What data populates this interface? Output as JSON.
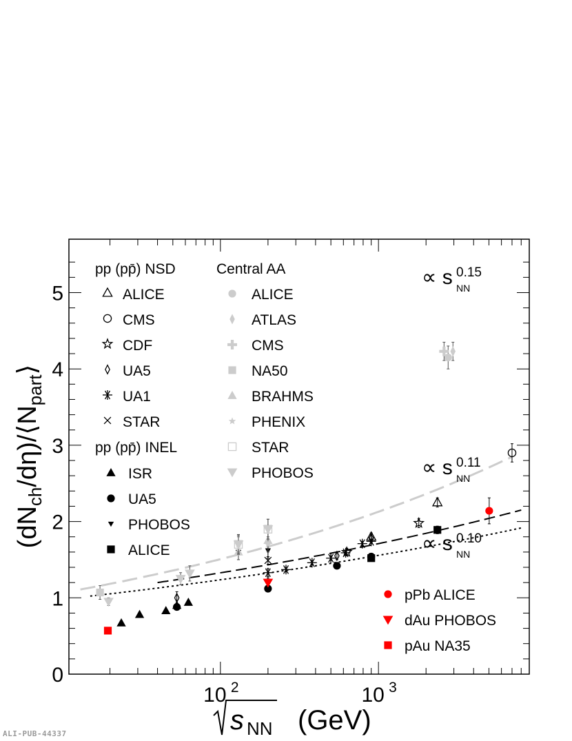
{
  "chart_data": {
    "type": "scatter",
    "xscale": "log",
    "xlim": [
      11,
      9000
    ],
    "ylim": [
      0,
      5.7
    ],
    "x_ticks": [
      {
        "value": 100,
        "base": "10",
        "exp": "2"
      },
      {
        "value": 1000,
        "base": "10",
        "exp": "3"
      }
    ],
    "y_ticks": [
      "0",
      "1",
      "2",
      "3",
      "4",
      "5"
    ],
    "xlabel": {
      "root": "s",
      "sub": "NN",
      "unit": "(GeV)"
    },
    "ylabel": {
      "p1": "(dN",
      "s1": "ch",
      "p2": "/dη)/⟨N",
      "s2": "part",
      "p3": "⟩"
    },
    "legend_sections": {
      "pp_nsd": "pp (pp̄) NSD",
      "pp_inel": "pp (pp̄) INEL",
      "central_aa": "Central AA"
    },
    "legend": {
      "pp_nsd": [
        {
          "label": "ALICE",
          "marker": "triangle-open"
        },
        {
          "label": "CMS",
          "marker": "circle-open"
        },
        {
          "label": "CDF",
          "marker": "star-open"
        },
        {
          "label": "UA5",
          "marker": "diamond-open"
        },
        {
          "label": "UA1",
          "marker": "asterisk"
        },
        {
          "label": "STAR",
          "marker": "cross"
        }
      ],
      "pp_inel": [
        {
          "label": "ISR",
          "marker": "triangle"
        },
        {
          "label": "UA5",
          "marker": "circle"
        },
        {
          "label": "PHOBOS",
          "marker": "triangle-down-small"
        },
        {
          "label": "ALICE",
          "marker": "square"
        }
      ],
      "central_aa": [
        {
          "label": "ALICE",
          "marker": "circle"
        },
        {
          "label": "ATLAS",
          "marker": "diamond"
        },
        {
          "label": "CMS",
          "marker": "plus"
        },
        {
          "label": "NA50",
          "marker": "square"
        },
        {
          "label": "BRAHMS",
          "marker": "triangle"
        },
        {
          "label": "PHENIX",
          "marker": "star"
        },
        {
          "label": "STAR",
          "marker": "square-open"
        },
        {
          "label": "PHOBOS",
          "marker": "triangle-down"
        }
      ],
      "pa": [
        {
          "label": "pPb ALICE",
          "marker": "circle",
          "color": "#ff0000"
        },
        {
          "label": "dAu PHOBOS",
          "marker": "triangle-down",
          "color": "#ff0000"
        },
        {
          "label": "pAu NA35",
          "marker": "square",
          "color": "#ff0000"
        }
      ]
    },
    "fits": [
      {
        "label_base": "∝ s",
        "label_sub": "NN",
        "label_exp": "0.15",
        "coef": 0.755,
        "power": 0.15,
        "xrange": [
          13,
          7000
        ],
        "color": "#cccccc",
        "style": "long-dash"
      },
      {
        "label_base": "∝ s",
        "label_sub": "NN",
        "label_exp": "0.11",
        "coef": 0.8,
        "power": 0.11,
        "xrange": [
          40,
          8000
        ],
        "color": "#000000",
        "style": "dash"
      },
      {
        "label_base": "∝ s",
        "label_sub": "NN",
        "label_exp": "0.10",
        "coef": 0.78,
        "power": 0.1,
        "xrange": [
          15,
          8000
        ],
        "color": "#000000",
        "style": "dot"
      }
    ],
    "series": [
      {
        "group": "pp_nsd",
        "marker": "triangle-open",
        "color": "#000000",
        "points": [
          [
            900,
            1.8,
            0.05
          ],
          [
            2360,
            2.25,
            0.06
          ]
        ]
      },
      {
        "group": "pp_nsd",
        "marker": "circle-open",
        "color": "#000000",
        "points": [
          [
            7000,
            2.9,
            0.12
          ]
        ]
      },
      {
        "group": "pp_nsd",
        "marker": "star-open",
        "color": "#000000",
        "points": [
          [
            630,
            1.6,
            0.05
          ],
          [
            1800,
            1.98,
            0.06
          ]
        ]
      },
      {
        "group": "pp_nsd",
        "marker": "diamond-open",
        "color": "#000000",
        "points": [
          [
            53,
            1.0,
            0.08
          ],
          [
            546,
            1.55,
            0.05
          ],
          [
            900,
            1.78,
            0.05
          ]
        ]
      },
      {
        "group": "pp_nsd",
        "marker": "asterisk",
        "color": "#000000",
        "points": [
          [
            200,
            1.33,
            0.05
          ],
          [
            260,
            1.37,
            0.03
          ],
          [
            380,
            1.46,
            0.03
          ],
          [
            500,
            1.52,
            0.03
          ],
          [
            620,
            1.59,
            0.03
          ],
          [
            790,
            1.71,
            0.03
          ],
          [
            900,
            1.74,
            0.03
          ]
        ]
      },
      {
        "group": "pp_nsd",
        "marker": "cross",
        "color": "#000000",
        "points": [
          [
            200,
            1.49,
            0.05
          ]
        ]
      },
      {
        "group": "pp_inel",
        "marker": "triangle",
        "color": "#000000",
        "points": [
          [
            23.6,
            0.67,
            0.02
          ],
          [
            30.8,
            0.78,
            0.02
          ],
          [
            45.2,
            0.83,
            0.02
          ],
          [
            53,
            0.9,
            0.02
          ],
          [
            62.7,
            0.94,
            0.02
          ]
        ]
      },
      {
        "group": "pp_inel",
        "marker": "circle",
        "color": "#000000",
        "points": [
          [
            53,
            0.88,
            0.03
          ],
          [
            200,
            1.12,
            0.03
          ],
          [
            546,
            1.42,
            0.03
          ],
          [
            900,
            1.54,
            0.03
          ]
        ]
      },
      {
        "group": "pp_inel",
        "marker": "triangle-down-small",
        "color": "#000000",
        "points": [
          [
            130,
            1.6,
            0.1
          ],
          [
            200,
            1.62,
            0.1
          ]
        ]
      },
      {
        "group": "pp_inel",
        "marker": "square",
        "color": "#000000",
        "points": [
          [
            900,
            1.52,
            0.04
          ],
          [
            2360,
            1.89,
            0.05
          ]
        ]
      },
      {
        "group": "central_aa",
        "marker": "circle",
        "color": "#cccccc",
        "points": [
          [
            2760,
            4.15,
            0.15
          ]
        ]
      },
      {
        "group": "central_aa",
        "marker": "diamond",
        "color": "#cccccc",
        "points": [
          [
            2960,
            4.23,
            0.12
          ]
        ]
      },
      {
        "group": "central_aa",
        "marker": "plus",
        "color": "#cccccc",
        "points": [
          [
            2600,
            4.23,
            0.12
          ]
        ]
      },
      {
        "group": "central_aa",
        "marker": "square",
        "color": "#cccccc",
        "points": [
          [
            17.3,
            1.07,
            0.09
          ]
        ]
      },
      {
        "group": "central_aa",
        "marker": "triangle",
        "color": "#cccccc",
        "points": [
          [
            130,
            1.6,
            0.1
          ],
          [
            200,
            1.75,
            0.1
          ]
        ]
      },
      {
        "group": "central_aa",
        "marker": "star",
        "color": "#cccccc",
        "points": [
          [
            130,
            1.7,
            0.1
          ],
          [
            200,
            1.7,
            0.1
          ]
        ]
      },
      {
        "group": "central_aa",
        "marker": "square-open",
        "color": "#cccccc",
        "points": [
          [
            130,
            1.7,
            0.13
          ],
          [
            200,
            1.9,
            0.13
          ]
        ]
      },
      {
        "group": "central_aa",
        "marker": "triangle-down",
        "color": "#cccccc",
        "points": [
          [
            19.6,
            0.95,
            0.05
          ],
          [
            56,
            1.25,
            0.08
          ],
          [
            64,
            1.32,
            0.1
          ],
          [
            130,
            1.7,
            0.12
          ],
          [
            200,
            1.9,
            0.13
          ]
        ]
      },
      {
        "group": "pa",
        "marker": "circle",
        "color": "#ff0000",
        "points": [
          [
            5020,
            2.14,
            0.17
          ]
        ]
      },
      {
        "group": "pa",
        "marker": "triangle-down",
        "color": "#ff0000",
        "points": [
          [
            200,
            1.2,
            0.06
          ]
        ]
      },
      {
        "group": "pa",
        "marker": "square",
        "color": "#ff0000",
        "points": [
          [
            19.4,
            0.57,
            0.03
          ]
        ]
      }
    ]
  },
  "watermark": "ALI-PUB-44337"
}
